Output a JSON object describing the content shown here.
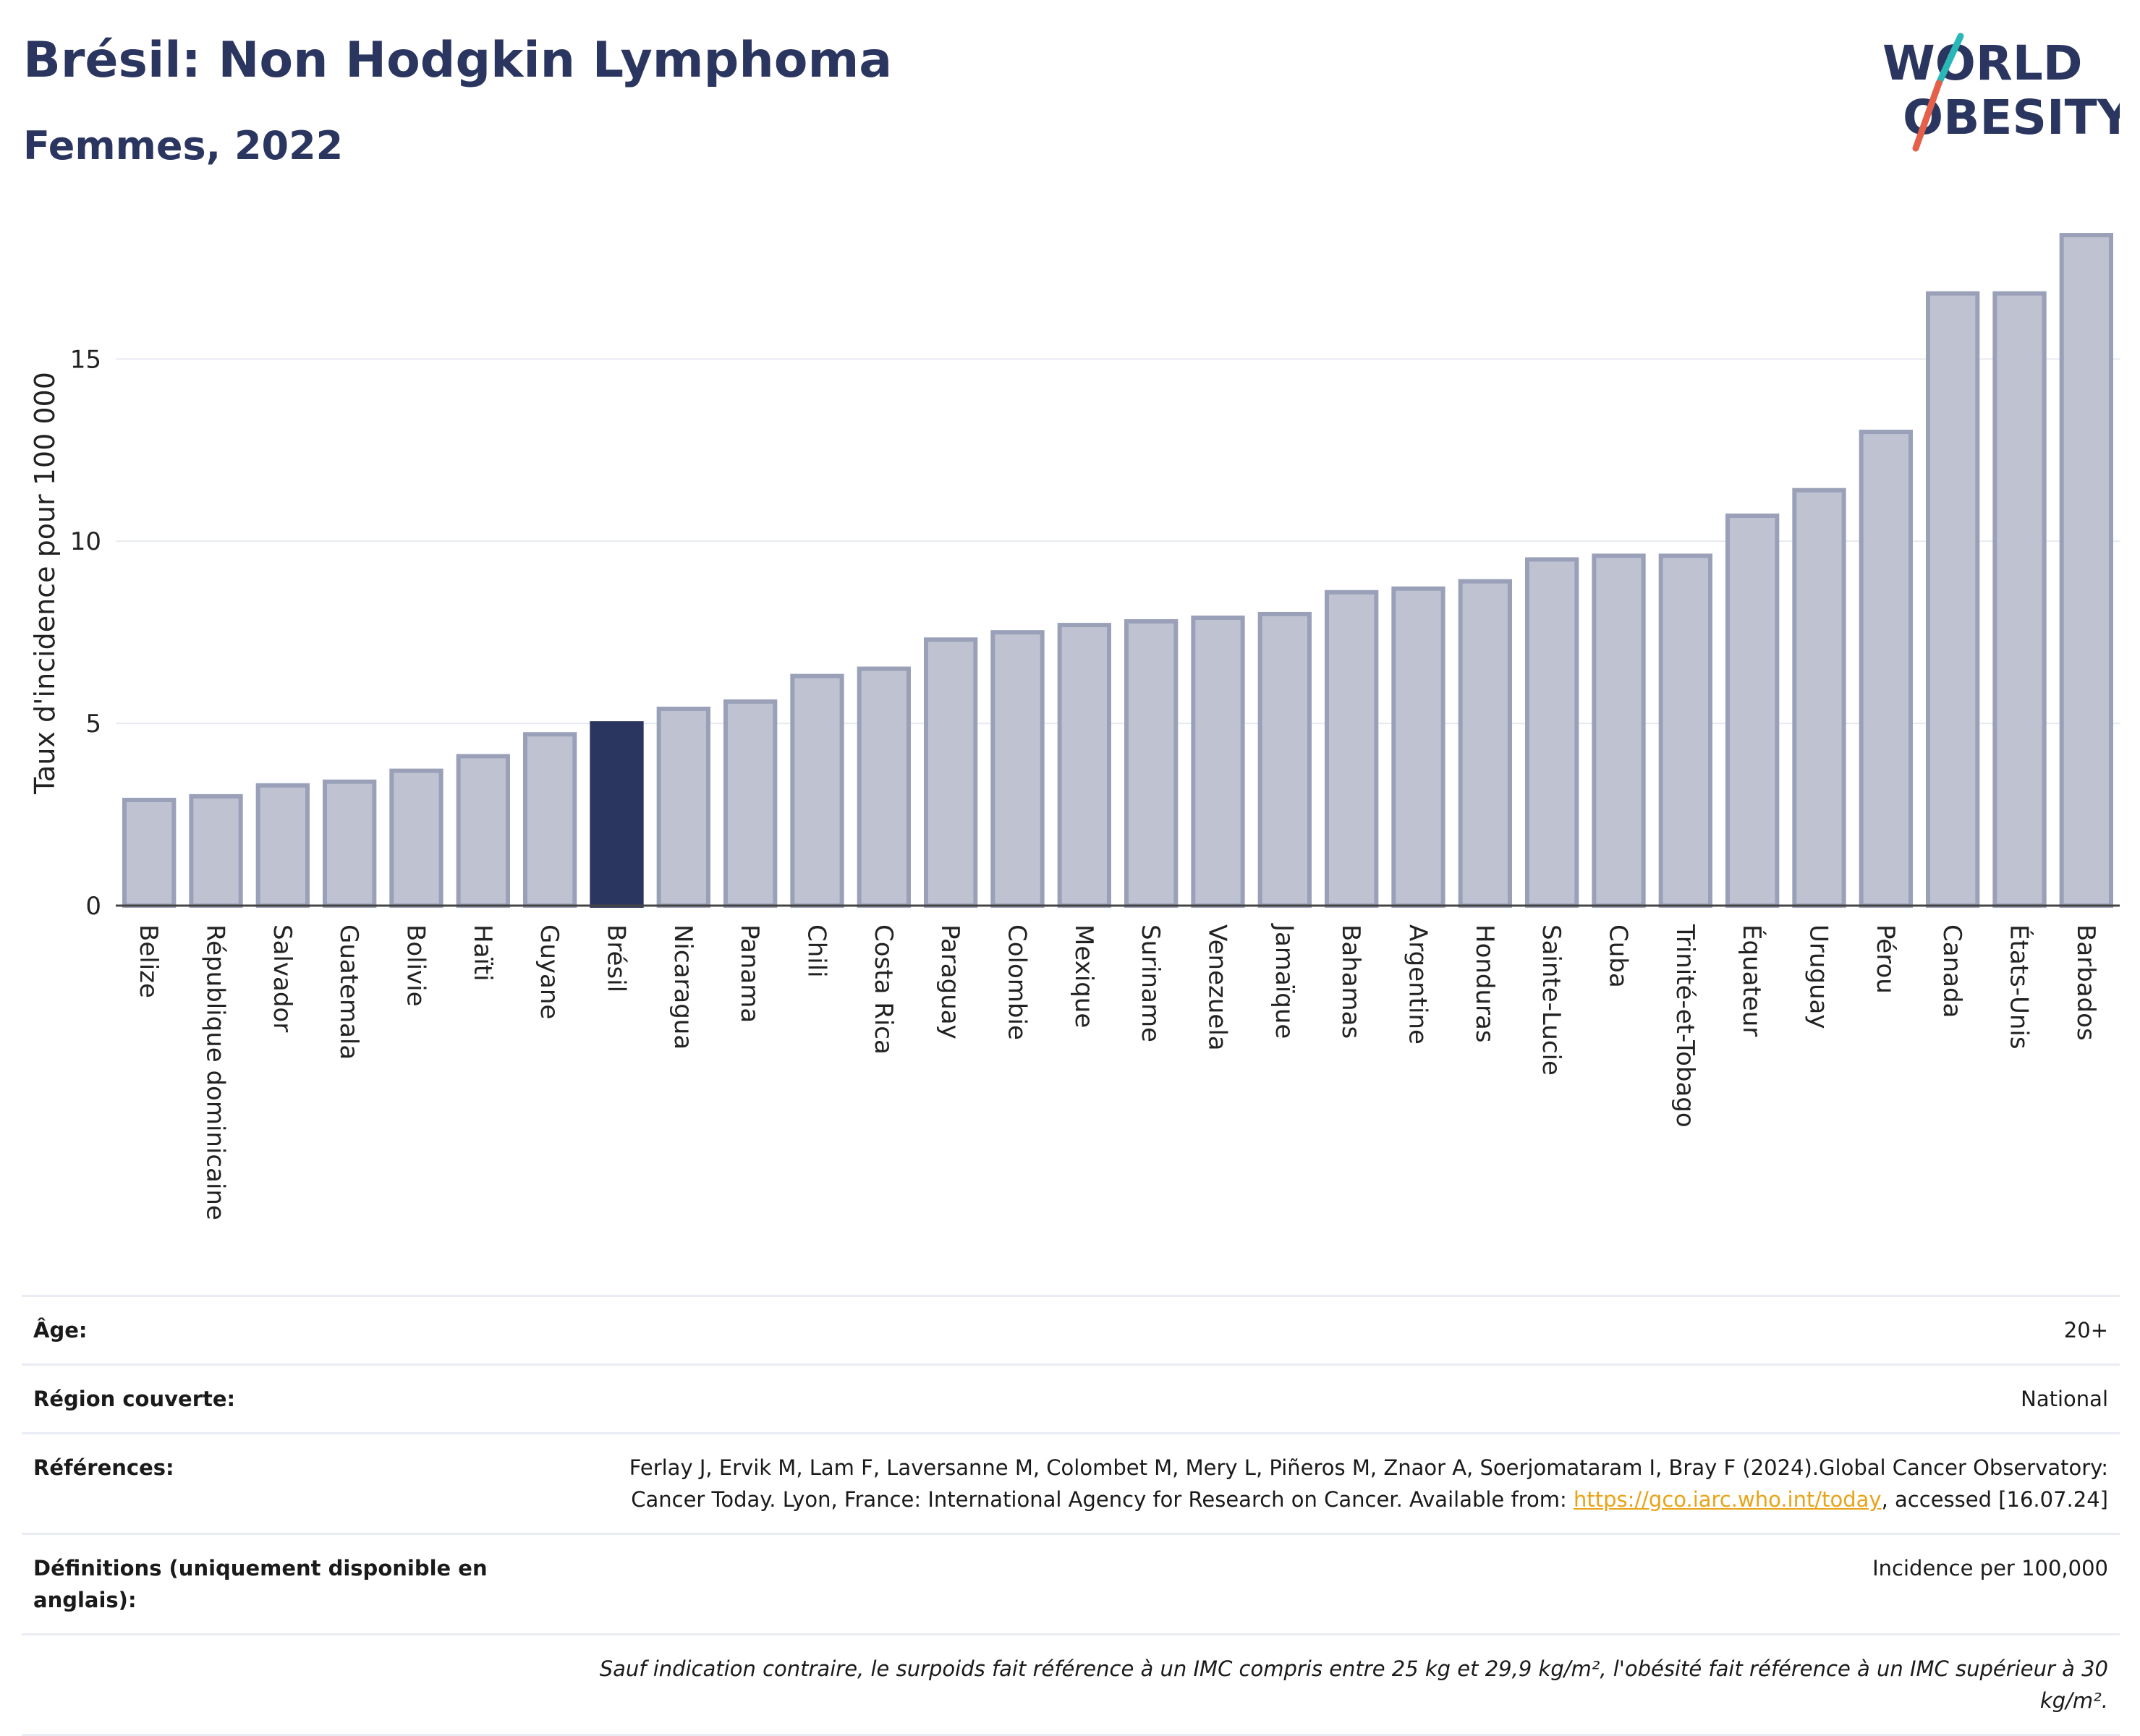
{
  "header": {
    "title": "Brésil: Non Hodgkin Lymphoma",
    "subtitle": "Femmes, 2022"
  },
  "logo": {
    "line1": "WORLD",
    "line2": "OBESITY",
    "accent_colors": [
      "#2ab7b7",
      "#e5604a"
    ]
  },
  "colors": {
    "highlight": "#2b3660",
    "bar": "#bfc3d1",
    "bar_border": "#9aa0b8",
    "title": "#2b3660"
  },
  "chart_data": {
    "type": "bar",
    "ylabel": "Taux d'incidence pour 100 000",
    "ylim": [
      0,
      18.5
    ],
    "yticks": [
      0,
      5,
      10,
      15
    ],
    "grid": true,
    "highlight": "Brésil",
    "categories": [
      "Belize",
      "République dominicaine",
      "Salvador",
      "Guatemala",
      "Bolivie",
      "Haïti",
      "Guyane",
      "Brésil",
      "Nicaragua",
      "Panama",
      "Chili",
      "Costa Rica",
      "Paraguay",
      "Colombie",
      "Mexique",
      "Suriname",
      "Venezuela",
      "Jamaïque",
      "Bahamas",
      "Argentine",
      "Honduras",
      "Sainte-Lucie",
      "Cuba",
      "Trinité-et-Tobago",
      "Équateur",
      "Uruguay",
      "Pérou",
      "Canada",
      "États-Unis",
      "Barbados"
    ],
    "values": [
      2.9,
      3.0,
      3.3,
      3.4,
      3.7,
      4.1,
      4.7,
      5.0,
      5.4,
      5.6,
      6.3,
      6.5,
      7.3,
      7.5,
      7.7,
      7.8,
      7.9,
      8.0,
      8.6,
      8.7,
      8.9,
      9.5,
      9.6,
      9.6,
      10.7,
      11.4,
      13.0,
      16.8,
      16.8,
      18.4
    ]
  },
  "meta": {
    "age_label": "Âge:",
    "age_value": "20+",
    "region_label": "Région couverte:",
    "region_value": "National",
    "refs_label": "Références:",
    "refs_text_1": "Ferlay J, Ervik M, Lam F, Laversanne M, Colombet M, Mery L, Piñeros M, Znaor A, Soerjomataram I, Bray F (2024).Global Cancer Observatory: Cancer Today. Lyon, France: International Agency for Research on Cancer. Available from: ",
    "refs_link": "https://gco.iarc.who.int/today",
    "refs_text_2": ", accessed [16.07.24]",
    "defs_label": "Définitions (uniquement disponible en anglais):",
    "defs_value": "Incidence per 100,000",
    "note": "Sauf indication contraire, le surpoids fait référence à un IMC compris entre 25 kg et 29,9 kg/m², l'obésité fait référence à un IMC supérieur à 30 kg/m²."
  }
}
